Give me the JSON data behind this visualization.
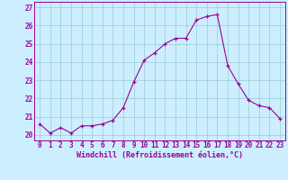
{
  "x": [
    0,
    1,
    2,
    3,
    4,
    5,
    6,
    7,
    8,
    9,
    10,
    11,
    12,
    13,
    14,
    15,
    16,
    17,
    18,
    19,
    20,
    21,
    22,
    23
  ],
  "y": [
    20.6,
    20.1,
    20.4,
    20.1,
    20.5,
    20.5,
    20.6,
    20.8,
    21.5,
    22.9,
    24.1,
    24.5,
    25.0,
    25.3,
    25.3,
    26.3,
    26.5,
    26.6,
    23.8,
    22.8,
    21.9,
    21.6,
    21.5,
    20.9
  ],
  "line_color": "#990099",
  "marker": "+",
  "bg_color": "#cceeff",
  "grid_color": "#99cccc",
  "ylabel_ticks": [
    20,
    21,
    22,
    23,
    24,
    25,
    26,
    27
  ],
  "xtick_labels": [
    "0",
    "1",
    "2",
    "3",
    "4",
    "5",
    "6",
    "7",
    "8",
    "9",
    "10",
    "11",
    "12",
    "13",
    "14",
    "15",
    "16",
    "17",
    "18",
    "19",
    "20",
    "21",
    "22",
    "23"
  ],
  "xlabel": "Windchill (Refroidissement éolien,°C)",
  "ylim": [
    19.7,
    27.3
  ],
  "xlim": [
    -0.5,
    23.5
  ],
  "tick_fontsize": 5.5,
  "xlabel_fontsize": 6.0
}
